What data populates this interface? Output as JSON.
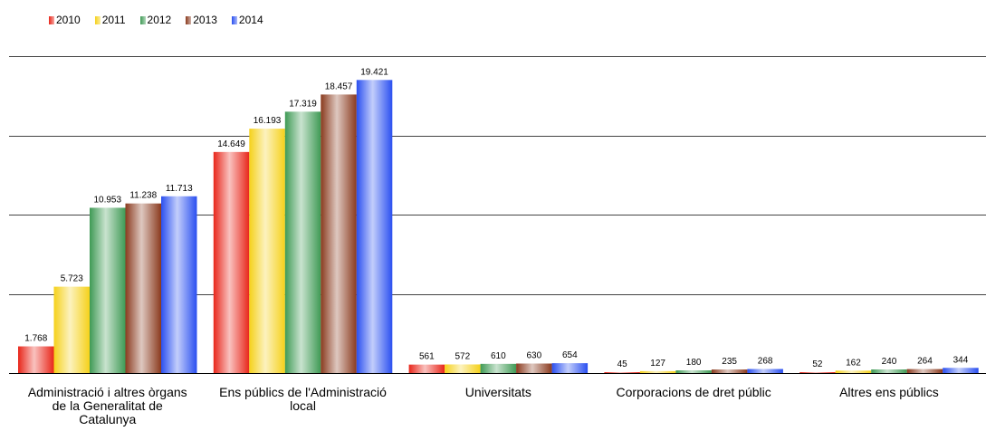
{
  "chart_data": {
    "type": "bar",
    "legend_position": "top-left",
    "grid": true,
    "ylim": [
      0,
      21000
    ],
    "categories": [
      "Administració i altres òrgans de la Generalitat de Catalunya",
      "Ens públics de l'Administració local",
      "Universitats",
      "Corporacions de dret públic",
      "Altres ens públics"
    ],
    "category_lines": [
      [
        "Administració i altres òrgans",
        "de la Generalitat de",
        "Catalunya"
      ],
      [
        "Ens públics de l'Administració",
        "local"
      ],
      [
        "Universitats"
      ],
      [
        "Corporacions de dret públic"
      ],
      [
        "Altres ens públics"
      ]
    ],
    "series": [
      {
        "name": "2010",
        "color": "#e8261a",
        "values": [
          1768,
          14649,
          561,
          45,
          52
        ],
        "labels": [
          "1.768",
          "14.649",
          "561",
          "45",
          "52"
        ]
      },
      {
        "name": "2011",
        "color": "#f5d11a",
        "values": [
          5723,
          16193,
          572,
          127,
          162
        ],
        "labels": [
          "5.723",
          "16.193",
          "572",
          "127",
          "162"
        ]
      },
      {
        "name": "2012",
        "color": "#3f9a55",
        "values": [
          10953,
          17319,
          610,
          180,
          240
        ],
        "labels": [
          "10.953",
          "17.319",
          "610",
          "180",
          "240"
        ]
      },
      {
        "name": "2013",
        "color": "#8a3a1e",
        "values": [
          11238,
          18457,
          630,
          235,
          264
        ],
        "labels": [
          "11.238",
          "18.457",
          "630",
          "235",
          "264"
        ]
      },
      {
        "name": "2014",
        "color": "#2a4ff0",
        "values": [
          11713,
          19421,
          654,
          268,
          344
        ],
        "labels": [
          "11.713",
          "19.421",
          "654",
          "268",
          "344"
        ]
      }
    ]
  }
}
